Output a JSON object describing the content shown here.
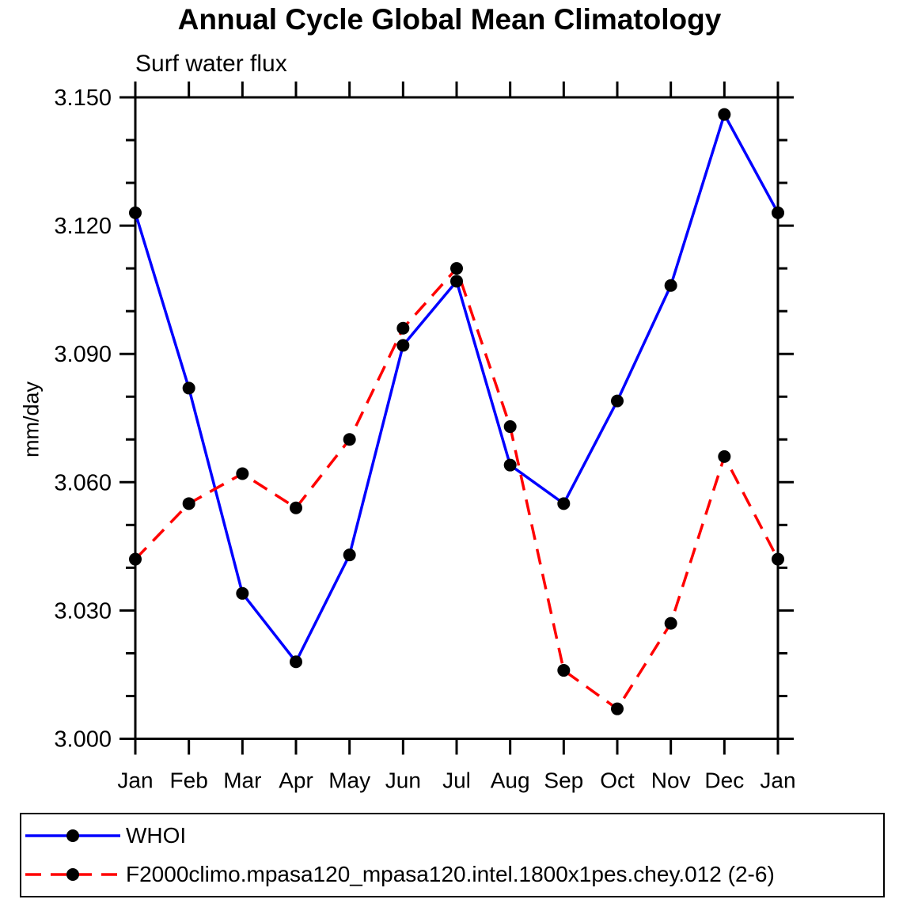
{
  "title": "Annual Cycle Global Mean Climatology",
  "subtitle": "Surf water flux",
  "chart_data": {
    "type": "line",
    "categories": [
      "Jan",
      "Feb",
      "Mar",
      "Apr",
      "May",
      "Jun",
      "Jul",
      "Aug",
      "Sep",
      "Oct",
      "Nov",
      "Dec",
      "Jan"
    ],
    "series": [
      {
        "name": "WHOI",
        "color": "#0000ff",
        "style": "solid",
        "marker": "circle",
        "marker_color": "#000000",
        "values": [
          3.123,
          3.082,
          3.034,
          3.018,
          3.043,
          3.092,
          3.107,
          3.064,
          3.055,
          3.079,
          3.106,
          3.146,
          3.123
        ]
      },
      {
        "name": "F2000climo.mpasa120_mpasa120.intel.1800x1pes.chey.012 (2-6)",
        "color": "#ff0000",
        "style": "dashed",
        "marker": "circle",
        "marker_color": "#000000",
        "values": [
          3.042,
          3.055,
          3.062,
          3.054,
          3.07,
          3.096,
          3.11,
          3.073,
          3.016,
          3.007,
          3.027,
          3.066,
          3.042
        ]
      }
    ],
    "xlabel": "",
    "ylabel": "mm/day",
    "ylim": [
      3.0,
      3.15
    ],
    "y_major_ticks": [
      3.0,
      3.03,
      3.06,
      3.09,
      3.12,
      3.15
    ],
    "y_tick_labels": [
      "3.000",
      "3.030",
      "3.060",
      "3.090",
      "3.120",
      "3.150"
    ],
    "y_minor_step": 0.01,
    "grid": false,
    "legend_position": "bottom",
    "frame_color": "#000000"
  }
}
